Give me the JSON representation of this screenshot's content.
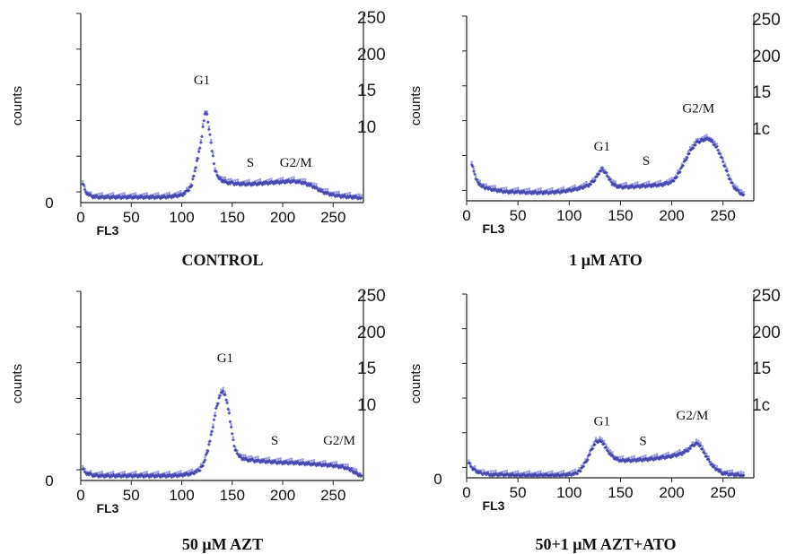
{
  "chart_data": [
    {
      "type": "scatter",
      "caption": "CONTROL",
      "xlabel": "FL3",
      "ylabel": "counts",
      "y_zero_label": "0",
      "right_labels": [
        "250",
        "200",
        "15",
        "10"
      ],
      "x_ticks": [
        0,
        50,
        100,
        150,
        200,
        250
      ],
      "xlim": [
        0,
        280
      ],
      "ylim": [
        0,
        250
      ],
      "annotations": [
        {
          "text": "G1",
          "x": 120,
          "y": 160
        },
        {
          "text": "S",
          "x": 168,
          "y": 47
        },
        {
          "text": "G2/M",
          "x": 213,
          "y": 47
        }
      ],
      "series": [
        {
          "x": [
            2,
            5,
            10,
            20,
            30,
            40,
            50,
            60,
            70,
            80,
            90,
            100,
            105,
            110,
            113,
            116,
            119,
            121,
            123,
            125,
            127,
            129,
            131,
            133,
            136,
            140,
            145,
            150,
            160,
            170,
            180,
            190,
            200,
            210,
            220,
            230,
            240,
            250,
            260,
            270,
            278
          ],
          "y": [
            25,
            12,
            6,
            5,
            5,
            5,
            5,
            5,
            5,
            5,
            6,
            8,
            12,
            22,
            40,
            60,
            80,
            100,
            120,
            118,
            100,
            80,
            60,
            42,
            32,
            28,
            25,
            24,
            23,
            23,
            24,
            25,
            26,
            27,
            25,
            20,
            12,
            8,
            6,
            5,
            4
          ]
        }
      ]
    },
    {
      "type": "scatter",
      "caption": "1 μM ATO",
      "xlabel": "FL3",
      "ylabel": "counts",
      "right_labels": [
        "250",
        "200",
        "15",
        "1c"
      ],
      "x_ticks": [
        0,
        50,
        100,
        150,
        200,
        250
      ],
      "xlim": [
        0,
        280
      ],
      "ylim": [
        0,
        250
      ],
      "annotations": [
        {
          "text": "G1",
          "x": 132,
          "y": 68
        },
        {
          "text": "S",
          "x": 175,
          "y": 48
        },
        {
          "text": "G2/M",
          "x": 226,
          "y": 122
        }
      ],
      "series": [
        {
          "x": [
            5,
            8,
            10,
            15,
            20,
            30,
            40,
            50,
            60,
            70,
            80,
            90,
            100,
            110,
            120,
            125,
            128,
            132,
            135,
            138,
            142,
            146,
            150,
            160,
            170,
            180,
            190,
            200,
            205,
            210,
            215,
            220,
            225,
            228,
            232,
            236,
            240,
            244,
            248,
            252,
            256,
            260,
            265,
            270
          ],
          "y": [
            50,
            35,
            25,
            18,
            15,
            12,
            10,
            10,
            9,
            9,
            9,
            10,
            12,
            15,
            20,
            28,
            35,
            42,
            38,
            30,
            22,
            18,
            17,
            17,
            18,
            19,
            20,
            24,
            32,
            45,
            60,
            72,
            80,
            82,
            84,
            85,
            80,
            72,
            60,
            45,
            30,
            18,
            10,
            6
          ]
        }
      ]
    },
    {
      "type": "scatter",
      "caption": "50 μM AZT",
      "xlabel": "FL3",
      "ylabel": "counts",
      "y_zero_label": "0",
      "right_labels": [
        "250",
        "200",
        "15",
        "10"
      ],
      "x_ticks": [
        0,
        50,
        100,
        150,
        200,
        250
      ],
      "xlim": [
        0,
        280
      ],
      "ylim": [
        0,
        250
      ],
      "annotations": [
        {
          "text": "G1",
          "x": 143,
          "y": 160
        },
        {
          "text": "S",
          "x": 192,
          "y": 47
        },
        {
          "text": "G2/M",
          "x": 256,
          "y": 47
        }
      ],
      "series": [
        {
          "x": [
            2,
            5,
            10,
            20,
            30,
            40,
            50,
            60,
            70,
            80,
            90,
            100,
            110,
            118,
            122,
            126,
            130,
            134,
            138,
            141,
            144,
            147,
            150,
            153,
            156,
            160,
            165,
            170,
            180,
            190,
            200,
            210,
            220,
            230,
            240,
            250,
            260,
            268,
            272,
            276,
            278
          ],
          "y": [
            15,
            8,
            5,
            4,
            4,
            4,
            4,
            4,
            4,
            4,
            4,
            5,
            7,
            12,
            22,
            40,
            65,
            95,
            115,
            120,
            110,
            90,
            60,
            40,
            32,
            28,
            26,
            25,
            24,
            23,
            22,
            22,
            21,
            20,
            19,
            18,
            16,
            12,
            8,
            5,
            4
          ]
        }
      ]
    },
    {
      "type": "scatter",
      "caption": "50+1 μM  AZT+ATO",
      "xlabel": "FL3",
      "ylabel": "counts",
      "y_zero_label": "0",
      "right_labels": [
        "250",
        "200",
        "15",
        "1c"
      ],
      "x_ticks": [
        0,
        50,
        100,
        150,
        200,
        250
      ],
      "xlim": [
        0,
        280
      ],
      "ylim": [
        0,
        250
      ],
      "annotations": [
        {
          "text": "G1",
          "x": 132,
          "y": 72
        },
        {
          "text": "S",
          "x": 172,
          "y": 44
        },
        {
          "text": "G2/M",
          "x": 220,
          "y": 80
        }
      ],
      "series": [
        {
          "x": [
            2,
            5,
            8,
            12,
            18,
            25,
            35,
            50,
            60,
            70,
            80,
            90,
            100,
            108,
            113,
            118,
            122,
            126,
            129,
            132,
            135,
            138,
            142,
            146,
            150,
            160,
            170,
            180,
            190,
            200,
            210,
            215,
            220,
            223,
            226,
            229,
            232,
            236,
            240,
            245,
            250,
            260,
            270
          ],
          "y": [
            20,
            12,
            8,
            5,
            3,
            2,
            2,
            1,
            1,
            1,
            1,
            1,
            2,
            4,
            12,
            25,
            38,
            48,
            50,
            48,
            42,
            35,
            28,
            24,
            22,
            22,
            23,
            24,
            26,
            28,
            32,
            36,
            42,
            46,
            45,
            40,
            32,
            22,
            14,
            8,
            4,
            2,
            1
          ]
        }
      ]
    }
  ]
}
